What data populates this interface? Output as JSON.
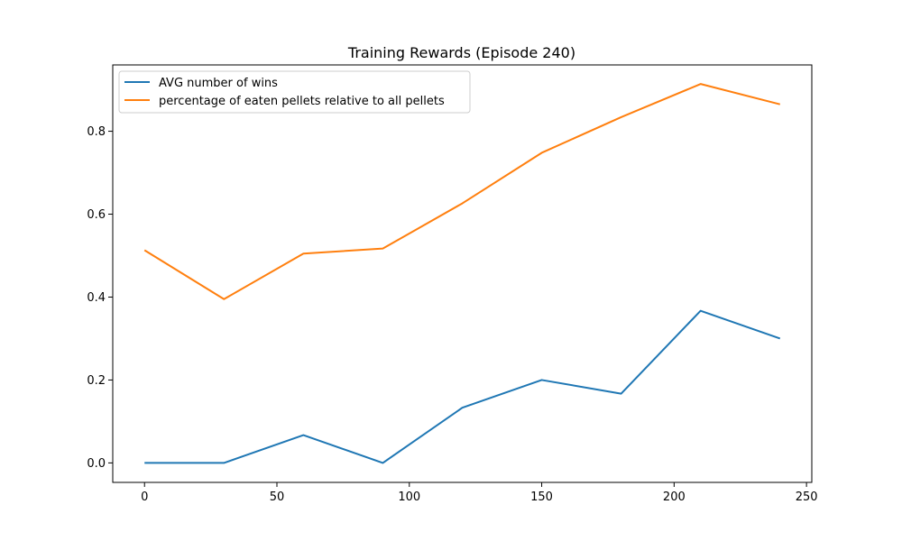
{
  "chart_data": {
    "type": "line",
    "title": "Training Rewards (Episode 240)",
    "xlabel": "",
    "ylabel": "",
    "x": [
      0,
      30,
      60,
      90,
      120,
      150,
      180,
      210,
      240
    ],
    "xlim": [
      -12,
      252
    ],
    "ylim": [
      -0.047,
      0.96
    ],
    "xticks": [
      0,
      50,
      100,
      150,
      200,
      250
    ],
    "yticks": [
      0.0,
      0.2,
      0.4,
      0.6,
      0.8
    ],
    "xtick_labels": [
      "0",
      "50",
      "100",
      "150",
      "200",
      "250"
    ],
    "ytick_labels": [
      "0.0",
      "0.2",
      "0.4",
      "0.6",
      "0.8"
    ],
    "grid": false,
    "legend_position": "top-left",
    "series": [
      {
        "name": "AVG number of wins",
        "color": "#1f77b4",
        "values": [
          0.0,
          0.0,
          0.067,
          0.0,
          0.133,
          0.2,
          0.167,
          0.367,
          0.3
        ]
      },
      {
        "name": "percentage of eaten pellets relative to all pellets",
        "color": "#ff7f0e",
        "values": [
          0.513,
          0.395,
          0.505,
          0.517,
          0.626,
          0.748,
          0.834,
          0.914,
          0.865
        ]
      }
    ]
  }
}
